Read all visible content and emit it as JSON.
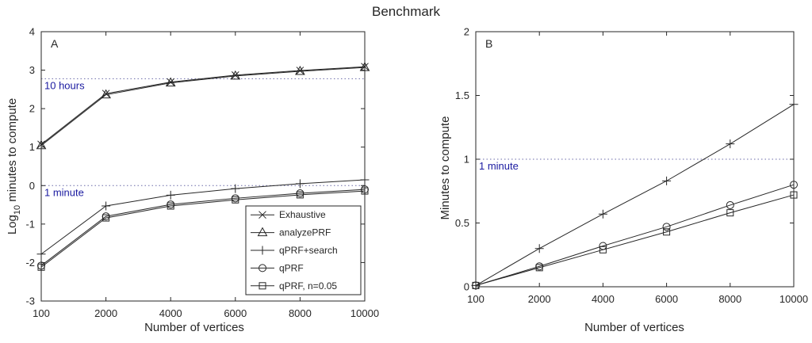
{
  "figure": {
    "title": "Benchmark"
  },
  "chart_data": [
    {
      "type": "line",
      "panel": "A",
      "xlabel": "Number of vertices",
      "ylabel_main": "Log",
      "ylabel_sub": "10",
      "ylabel_rest": " minutes to compute",
      "xticks": [
        "100",
        "2000",
        "4000",
        "6000",
        "8000",
        "10000"
      ],
      "yticks": [
        "-3",
        "-2",
        "-1",
        "0",
        "1",
        "2",
        "3",
        "4"
      ],
      "ylim": [
        -3,
        4
      ],
      "reference_lines": [
        {
          "label": "10 hours",
          "y": 2.778
        },
        {
          "label": "1 minute",
          "y": 0
        }
      ],
      "legend": {
        "placement": "bottom-right"
      },
      "series": [
        {
          "name": "Exhaustive",
          "marker": "x",
          "values": [
            1.07,
            2.39,
            2.69,
            2.87,
            2.99,
            3.09
          ]
        },
        {
          "name": "analyzePRF",
          "marker": "triangle",
          "values": [
            1.04,
            2.36,
            2.67,
            2.85,
            2.97,
            3.07
          ]
        },
        {
          "name": "qPRF+search",
          "marker": "plus",
          "values": [
            -1.78,
            -0.53,
            -0.25,
            -0.08,
            0.05,
            0.15
          ]
        },
        {
          "name": "qPRF",
          "marker": "circle",
          "values": [
            -2.08,
            -0.8,
            -0.49,
            -0.33,
            -0.2,
            -0.1
          ]
        },
        {
          "name": "qPRF, n=0.05",
          "marker": "square",
          "values": [
            -2.12,
            -0.84,
            -0.53,
            -0.37,
            -0.24,
            -0.14
          ]
        }
      ]
    },
    {
      "type": "line",
      "panel": "B",
      "xlabel": "Number of vertices",
      "ylabel": "Minutes to compute",
      "xticks": [
        "100",
        "2000",
        "4000",
        "6000",
        "8000",
        "10000"
      ],
      "yticks": [
        "0",
        "0.5",
        "1",
        "1.5",
        "2"
      ],
      "ylim": [
        0,
        2
      ],
      "reference_lines": [
        {
          "label": "1 minute",
          "y": 1
        }
      ],
      "series": [
        {
          "name": "qPRF+search",
          "marker": "plus",
          "values": [
            0.01,
            0.3,
            0.57,
            0.83,
            1.12,
            1.43
          ]
        },
        {
          "name": "qPRF",
          "marker": "circle",
          "values": [
            0.01,
            0.16,
            0.32,
            0.47,
            0.64,
            0.8
          ]
        },
        {
          "name": "qPRF, n=0.05",
          "marker": "square",
          "values": [
            0.01,
            0.15,
            0.29,
            0.43,
            0.58,
            0.72
          ]
        }
      ]
    }
  ]
}
